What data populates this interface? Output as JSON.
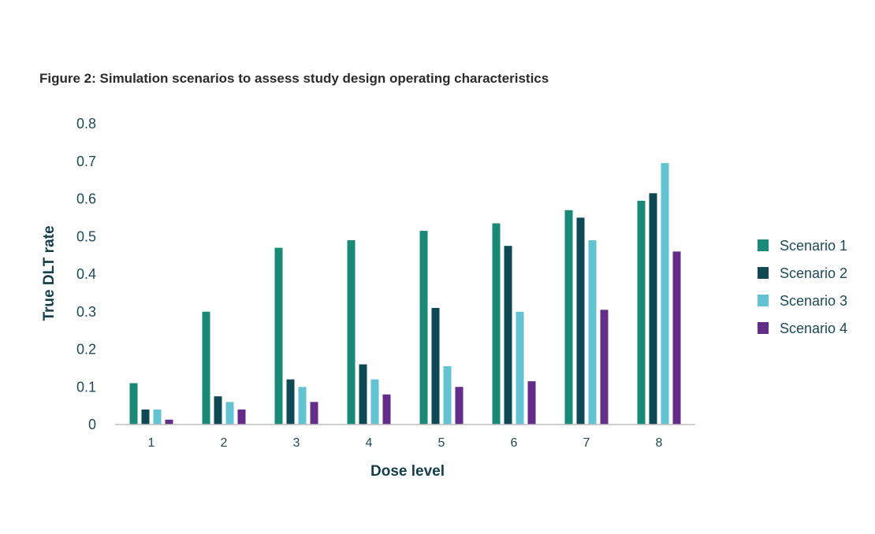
{
  "chart_data": {
    "type": "bar",
    "title": "Figure 2: Simulation scenarios to assess study design operating characteristics",
    "xlabel": "Dose level",
    "ylabel": "True DLT rate",
    "categories": [
      "1",
      "2",
      "3",
      "4",
      "5",
      "6",
      "7",
      "8"
    ],
    "ylim": [
      0,
      0.8
    ],
    "yticks": [
      "0",
      "0.1",
      "0.2",
      "0.3",
      "0.4",
      "0.5",
      "0.6",
      "0.7",
      "0.8"
    ],
    "grid": false,
    "legend_position": "right",
    "series": [
      {
        "name": "Scenario 1",
        "color": "#1a8a78",
        "values": [
          0.11,
          0.3,
          0.47,
          0.49,
          0.515,
          0.535,
          0.57,
          0.595
        ]
      },
      {
        "name": "Scenario 2",
        "color": "#0f4a54",
        "values": [
          0.04,
          0.075,
          0.12,
          0.16,
          0.31,
          0.475,
          0.55,
          0.615
        ]
      },
      {
        "name": "Scenario 3",
        "color": "#62c3d3",
        "values": [
          0.04,
          0.06,
          0.1,
          0.12,
          0.155,
          0.3,
          0.49,
          0.695
        ]
      },
      {
        "name": "Scenario 4",
        "color": "#652d8a",
        "values": [
          0.013,
          0.04,
          0.06,
          0.08,
          0.1,
          0.115,
          0.305,
          0.46
        ]
      }
    ]
  }
}
